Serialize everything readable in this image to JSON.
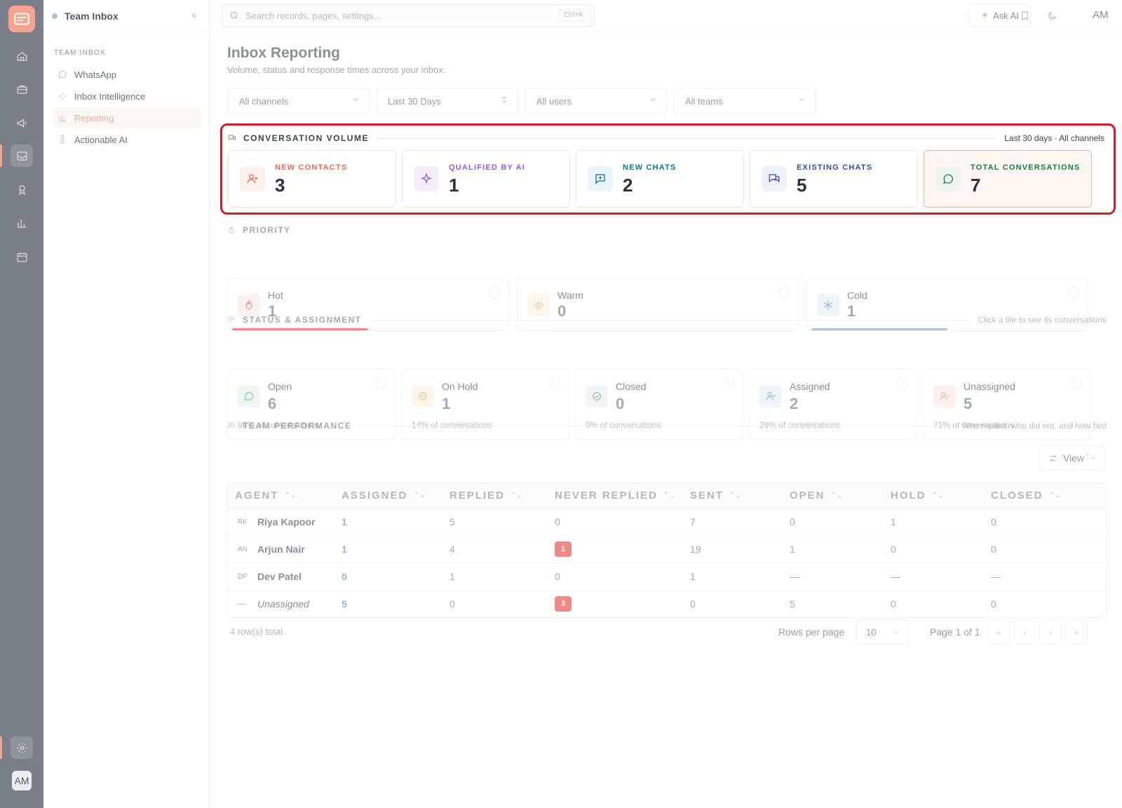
{
  "colors": {
    "accent": "#f6a48f",
    "highlight_border": "#d31c2a",
    "rail_bg": "#7b7f8a",
    "new_contacts": "#e86a4f",
    "qualified": "#8b5cf6",
    "new_chats": "#0e7490",
    "existing_chats": "#2f4fa8",
    "total": "#15803d",
    "badge": "#ef8a86",
    "link": "#8fb7d9"
  },
  "rail": {
    "icons": [
      "home-icon",
      "briefcase-icon",
      "megaphone-icon",
      "inbox-icon",
      "award-icon",
      "chart-icon",
      "calendar-icon",
      "settings-icon"
    ],
    "avatar": "AM"
  },
  "sidebar": {
    "title": "Team Inbox",
    "section": "TEAM INBOX",
    "items": [
      {
        "label": "WhatsApp",
        "icon": "whatsapp-icon"
      },
      {
        "label": "Inbox Intelligence",
        "icon": "sparkle-icon"
      },
      {
        "label": "Reporting",
        "icon": "bar-chart-icon",
        "active": true
      },
      {
        "label": "Actionable AI",
        "icon": "thermometer-icon"
      }
    ]
  },
  "topbar": {
    "search_placeholder": "Search records, pages, settings...",
    "search_shortcut": "Ctrl+K",
    "ask_ai": "Ask AI",
    "avatar": "AM"
  },
  "page": {
    "title": "Inbox Reporting",
    "subtitle": "Volume, status and response times across your inbox."
  },
  "filters": [
    "All channels",
    "Last 30 Days",
    "All users",
    "All teams"
  ],
  "volume": {
    "title": "CONVERSATION VOLUME",
    "context": "Last 30 days · All channels",
    "cards": [
      {
        "label": "NEW CONTACTS",
        "value": "3",
        "icon": "user-plus-icon"
      },
      {
        "label": "QUALIFIED BY AI",
        "value": "1",
        "icon": "sparkles-icon"
      },
      {
        "label": "NEW CHATS",
        "value": "2",
        "icon": "message-plus-icon"
      },
      {
        "label": "EXISTING CHATS",
        "value": "5",
        "icon": "messages-icon"
      },
      {
        "label": "TOTAL CONVERSATIONS",
        "value": "7",
        "icon": "message-circle-icon",
        "active": true
      }
    ]
  },
  "priority": {
    "title": "PRIORITY",
    "cards": [
      {
        "label": "Hot",
        "value": "1",
        "icon": "flame-icon",
        "share": 0.5
      },
      {
        "label": "Warm",
        "value": "0",
        "icon": "sun-icon",
        "share": 0
      },
      {
        "label": "Cold",
        "value": "1",
        "icon": "snowflake-icon",
        "share": 0.5
      }
    ]
  },
  "status": {
    "title": "STATUS & ASSIGNMENT",
    "hint": "Click a tile to see its conversations",
    "cards": [
      {
        "label": "Open",
        "value": "6",
        "pct": "86% of conversations",
        "icon": "message-circle-icon"
      },
      {
        "label": "On Hold",
        "value": "1",
        "pct": "14% of conversations",
        "icon": "pause-circle-icon"
      },
      {
        "label": "Closed",
        "value": "0",
        "pct": "0% of conversations",
        "icon": "check-circle-icon"
      },
      {
        "label": "Assigned",
        "value": "2",
        "pct": "29% of conversations",
        "icon": "user-check-icon"
      },
      {
        "label": "Unassigned",
        "value": "5",
        "pct": "71% of conversations",
        "icon": "user-icon"
      }
    ]
  },
  "team": {
    "title": "TEAM PERFORMANCE",
    "hint": "Who replied, who did not, and how fast",
    "view_button": "View",
    "columns": [
      "AGENT",
      "ASSIGNED",
      "REPLIED",
      "NEVER REPLIED",
      "SENT",
      "OPEN",
      "HOLD",
      "CLOSED"
    ],
    "rows": [
      {
        "initials": "RK",
        "name": "Riya Kapoor",
        "assigned": "1",
        "replied": "5",
        "never": "0",
        "never_badge": false,
        "sent": "7",
        "open": "0",
        "hold": "1",
        "closed": "0"
      },
      {
        "initials": "AN",
        "name": "Arjun Nair",
        "assigned": "1",
        "replied": "4",
        "never": "1",
        "never_badge": true,
        "sent": "19",
        "open": "1",
        "hold": "0",
        "closed": "0"
      },
      {
        "initials": "DP",
        "name": "Dev Patel",
        "assigned": "0",
        "replied": "1",
        "never": "0",
        "never_badge": false,
        "sent": "1",
        "open": "—",
        "hold": "—",
        "closed": "—"
      },
      {
        "initials": "—",
        "name": "Unassigned",
        "assigned": "5",
        "replied": "0",
        "never": "3",
        "never_badge": true,
        "sent": "0",
        "open": "5",
        "hold": "0",
        "closed": "0",
        "unassigned": true
      }
    ],
    "total": "4 row(s) total.",
    "rows_per_page_label": "Rows per page",
    "rows_per_page": "10",
    "page_label": "Page 1 of 1",
    "pager": [
      "«",
      "‹",
      "›",
      "»"
    ]
  }
}
